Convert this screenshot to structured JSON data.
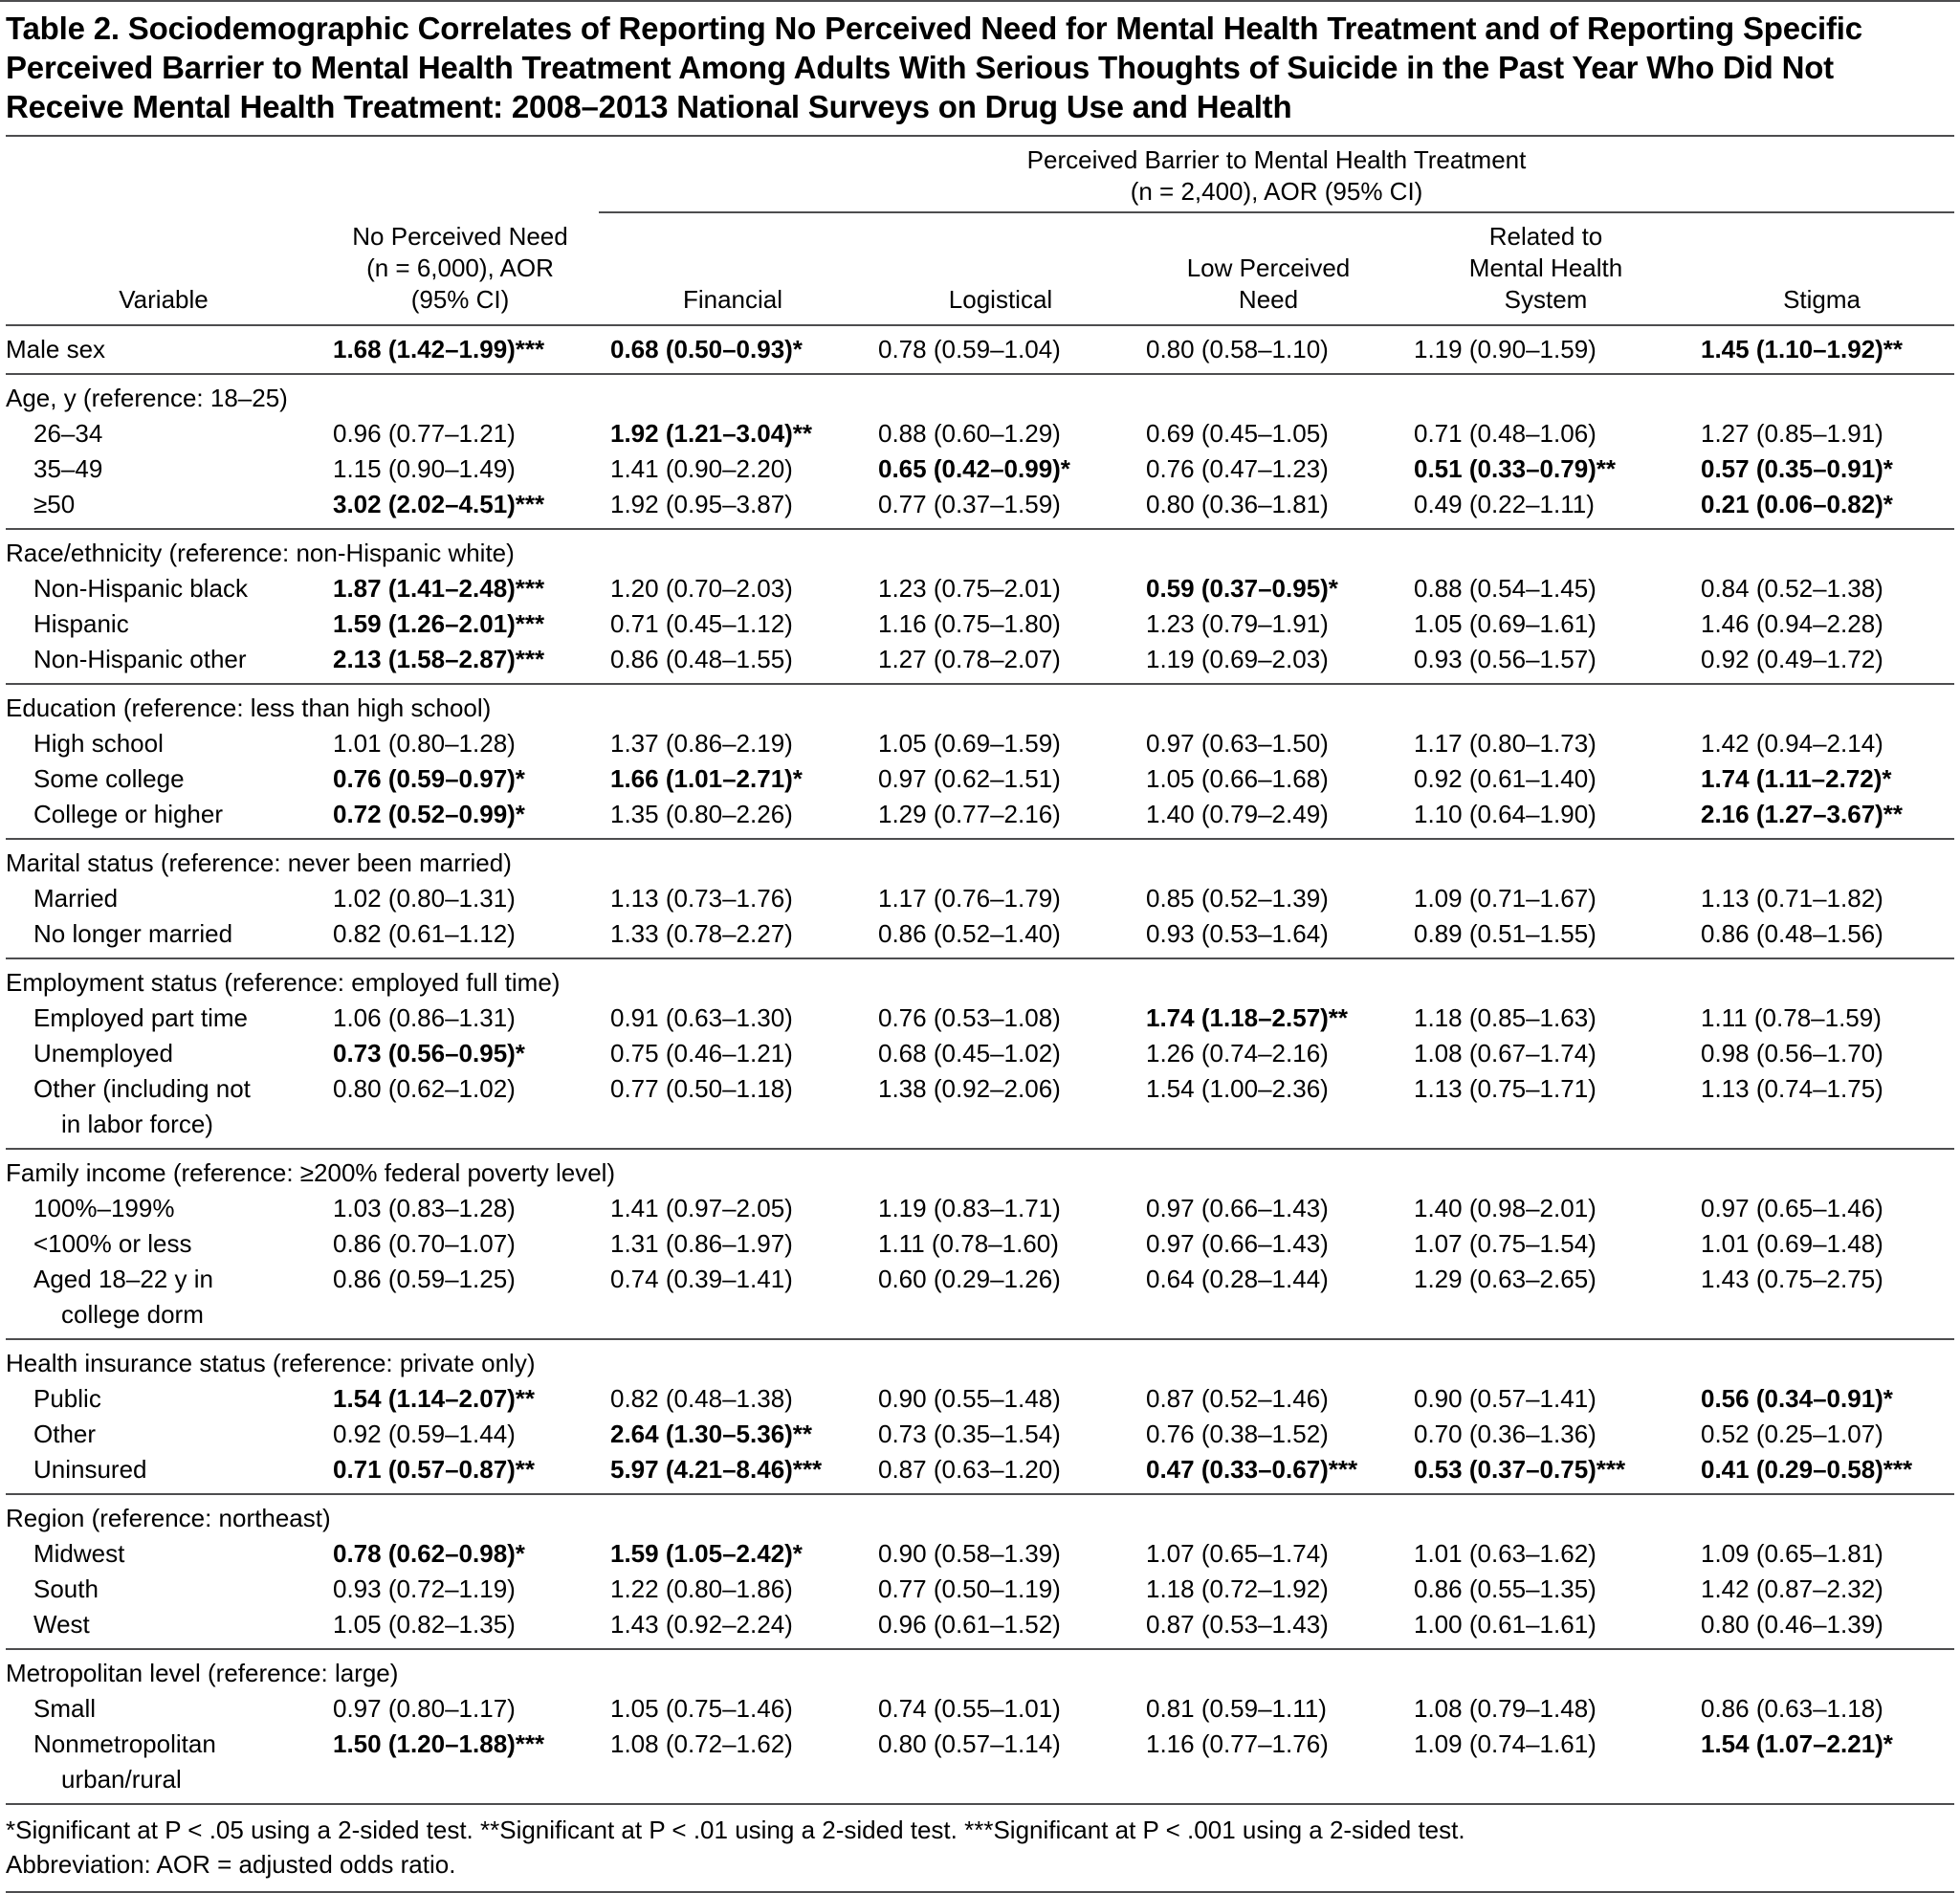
{
  "title": "Table 2. Sociodemographic Correlates of Reporting No Perceived Need for Mental Health Treatment and of Reporting Specific Perceived Barrier to Mental Health Treatment Among Adults With Serious Thoughts of Suicide in the Past Year Who Did Not Receive Mental Health Treatment: 2008–2013 National Surveys on Drug Use and Health",
  "header": {
    "barrier_group": "Perceived Barrier to Mental Health Treatment\n(n = 2,400), AOR (95% CI)",
    "columns": [
      "Variable",
      "No Perceived Need\n(n = 6,000), AOR\n(95% CI)",
      "Financial",
      "Logistical",
      "Low Perceived\nNeed",
      "Related to\nMental Health\nSystem",
      "Stigma"
    ]
  },
  "groups": [
    {
      "header": null,
      "rows": [
        {
          "label": "Male sex",
          "indent": false,
          "values": [
            {
              "t": "1.68 (1.42–1.99)***",
              "b": true
            },
            {
              "t": "0.68 (0.50–0.93)*",
              "b": true
            },
            {
              "t": "0.78 (0.59–1.04)"
            },
            {
              "t": "0.80 (0.58–1.10)"
            },
            {
              "t": "1.19 (0.90–1.59)"
            },
            {
              "t": "1.45 (1.10–1.92)**",
              "b": true
            }
          ]
        }
      ]
    },
    {
      "header": "Age, y (reference: 18–25)",
      "rows": [
        {
          "label": "26–34",
          "indent": true,
          "values": [
            {
              "t": "0.96 (0.77–1.21)"
            },
            {
              "t": "1.92 (1.21–3.04)**",
              "b": true
            },
            {
              "t": "0.88 (0.60–1.29)"
            },
            {
              "t": "0.69 (0.45–1.05)"
            },
            {
              "t": "0.71 (0.48–1.06)"
            },
            {
              "t": "1.27 (0.85–1.91)"
            }
          ]
        },
        {
          "label": "35–49",
          "indent": true,
          "values": [
            {
              "t": "1.15 (0.90–1.49)"
            },
            {
              "t": "1.41 (0.90–2.20)"
            },
            {
              "t": "0.65 (0.42–0.99)*",
              "b": true
            },
            {
              "t": "0.76 (0.47–1.23)"
            },
            {
              "t": "0.51 (0.33–0.79)**",
              "b": true
            },
            {
              "t": "0.57 (0.35–0.91)*",
              "b": true
            }
          ]
        },
        {
          "label": "≥50",
          "indent": true,
          "values": [
            {
              "t": "3.02 (2.02–4.51)***",
              "b": true
            },
            {
              "t": "1.92 (0.95–3.87)"
            },
            {
              "t": "0.77 (0.37–1.59)"
            },
            {
              "t": "0.80 (0.36–1.81)"
            },
            {
              "t": "0.49 (0.22–1.11)"
            },
            {
              "t": "0.21 (0.06–0.82)*",
              "b": true
            }
          ]
        }
      ]
    },
    {
      "header": "Race/ethnicity (reference: non-Hispanic white)",
      "rows": [
        {
          "label": "Non-Hispanic black",
          "indent": true,
          "values": [
            {
              "t": "1.87 (1.41–2.48)***",
              "b": true
            },
            {
              "t": "1.20 (0.70–2.03)"
            },
            {
              "t": "1.23 (0.75–2.01)"
            },
            {
              "t": "0.59 (0.37–0.95)*",
              "b": true
            },
            {
              "t": "0.88 (0.54–1.45)"
            },
            {
              "t": "0.84 (0.52–1.38)"
            }
          ]
        },
        {
          "label": "Hispanic",
          "indent": true,
          "values": [
            {
              "t": "1.59 (1.26–2.01)***",
              "b": true
            },
            {
              "t": "0.71 (0.45–1.12)"
            },
            {
              "t": "1.16 (0.75–1.80)"
            },
            {
              "t": "1.23 (0.79–1.91)"
            },
            {
              "t": "1.05 (0.69–1.61)"
            },
            {
              "t": "1.46 (0.94–2.28)"
            }
          ]
        },
        {
          "label": "Non-Hispanic other",
          "indent": true,
          "values": [
            {
              "t": "2.13 (1.58–2.87)***",
              "b": true
            },
            {
              "t": "0.86 (0.48–1.55)"
            },
            {
              "t": "1.27 (0.78–2.07)"
            },
            {
              "t": "1.19 (0.69–2.03)"
            },
            {
              "t": "0.93 (0.56–1.57)"
            },
            {
              "t": "0.92 (0.49–1.72)"
            }
          ]
        }
      ]
    },
    {
      "header": "Education (reference: less than high school)",
      "rows": [
        {
          "label": "High school",
          "indent": true,
          "values": [
            {
              "t": "1.01 (0.80–1.28)"
            },
            {
              "t": "1.37 (0.86–2.19)"
            },
            {
              "t": "1.05 (0.69–1.59)"
            },
            {
              "t": "0.97 (0.63–1.50)"
            },
            {
              "t": "1.17 (0.80–1.73)"
            },
            {
              "t": "1.42 (0.94–2.14)"
            }
          ]
        },
        {
          "label": "Some college",
          "indent": true,
          "values": [
            {
              "t": "0.76 (0.59–0.97)*",
              "b": true
            },
            {
              "t": "1.66 (1.01–2.71)*",
              "b": true
            },
            {
              "t": "0.97 (0.62–1.51)"
            },
            {
              "t": "1.05 (0.66–1.68)"
            },
            {
              "t": "0.92 (0.61–1.40)"
            },
            {
              "t": "1.74 (1.11–2.72)*",
              "b": true
            }
          ]
        },
        {
          "label": "College or higher",
          "indent": true,
          "values": [
            {
              "t": "0.72 (0.52–0.99)*",
              "b": true
            },
            {
              "t": "1.35 (0.80–2.26)"
            },
            {
              "t": "1.29 (0.77–2.16)"
            },
            {
              "t": "1.40 (0.79–2.49)"
            },
            {
              "t": "1.10 (0.64–1.90)"
            },
            {
              "t": "2.16 (1.27–3.67)**",
              "b": true
            }
          ]
        }
      ]
    },
    {
      "header": "Marital status (reference: never been married)",
      "rows": [
        {
          "label": "Married",
          "indent": true,
          "values": [
            {
              "t": "1.02 (0.80–1.31)"
            },
            {
              "t": "1.13 (0.73–1.76)"
            },
            {
              "t": "1.17 (0.76–1.79)"
            },
            {
              "t": "0.85 (0.52–1.39)"
            },
            {
              "t": "1.09 (0.71–1.67)"
            },
            {
              "t": "1.13 (0.71–1.82)"
            }
          ]
        },
        {
          "label": "No longer married",
          "indent": true,
          "values": [
            {
              "t": "0.82 (0.61–1.12)"
            },
            {
              "t": "1.33 (0.78–2.27)"
            },
            {
              "t": "0.86 (0.52–1.40)"
            },
            {
              "t": "0.93 (0.53–1.64)"
            },
            {
              "t": "0.89 (0.51–1.55)"
            },
            {
              "t": "0.86 (0.48–1.56)"
            }
          ]
        }
      ]
    },
    {
      "header": "Employment status (reference: employed full time)",
      "rows": [
        {
          "label": "Employed part time",
          "indent": true,
          "values": [
            {
              "t": "1.06 (0.86–1.31)"
            },
            {
              "t": "0.91 (0.63–1.30)"
            },
            {
              "t": "0.76 (0.53–1.08)"
            },
            {
              "t": "1.74 (1.18–2.57)**",
              "b": true
            },
            {
              "t": "1.18 (0.85–1.63)"
            },
            {
              "t": "1.11 (0.78–1.59)"
            }
          ]
        },
        {
          "label": "Unemployed",
          "indent": true,
          "values": [
            {
              "t": "0.73 (0.56–0.95)*",
              "b": true
            },
            {
              "t": "0.75 (0.46–1.21)"
            },
            {
              "t": "0.68 (0.45–1.02)"
            },
            {
              "t": "1.26 (0.74–2.16)"
            },
            {
              "t": "1.08 (0.67–1.74)"
            },
            {
              "t": "0.98 (0.56–1.70)"
            }
          ]
        },
        {
          "label": "Other (including not\nin labor force)",
          "indent": true,
          "values": [
            {
              "t": "0.80 (0.62–1.02)"
            },
            {
              "t": "0.77 (0.50–1.18)"
            },
            {
              "t": "1.38 (0.92–2.06)"
            },
            {
              "t": "1.54 (1.00–2.36)"
            },
            {
              "t": "1.13 (0.75–1.71)"
            },
            {
              "t": "1.13 (0.74–1.75)"
            }
          ]
        }
      ]
    },
    {
      "header": "Family income (reference: ≥200% federal poverty level)",
      "rows": [
        {
          "label": "100%–199%",
          "indent": true,
          "values": [
            {
              "t": "1.03 (0.83–1.28)"
            },
            {
              "t": "1.41 (0.97–2.05)"
            },
            {
              "t": "1.19 (0.83–1.71)"
            },
            {
              "t": "0.97 (0.66–1.43)"
            },
            {
              "t": "1.40 (0.98–2.01)"
            },
            {
              "t": "0.97 (0.65–1.46)"
            }
          ]
        },
        {
          "label": "<100% or less",
          "indent": true,
          "values": [
            {
              "t": "0.86 (0.70–1.07)"
            },
            {
              "t": "1.31 (0.86–1.97)"
            },
            {
              "t": "1.11 (0.78–1.60)"
            },
            {
              "t": "0.97 (0.66–1.43)"
            },
            {
              "t": "1.07 (0.75–1.54)"
            },
            {
              "t": "1.01 (0.69–1.48)"
            }
          ]
        },
        {
          "label": "Aged 18–22 y in\ncollege dorm",
          "indent": true,
          "values": [
            {
              "t": "0.86 (0.59–1.25)"
            },
            {
              "t": "0.74 (0.39–1.41)"
            },
            {
              "t": "0.60 (0.29–1.26)"
            },
            {
              "t": "0.64 (0.28–1.44)"
            },
            {
              "t": "1.29 (0.63–2.65)"
            },
            {
              "t": "1.43 (0.75–2.75)"
            }
          ]
        }
      ]
    },
    {
      "header": "Health insurance status (reference: private only)",
      "rows": [
        {
          "label": "Public",
          "indent": true,
          "values": [
            {
              "t": "1.54 (1.14–2.07)**",
              "b": true
            },
            {
              "t": "0.82 (0.48–1.38)"
            },
            {
              "t": "0.90 (0.55–1.48)"
            },
            {
              "t": "0.87 (0.52–1.46)"
            },
            {
              "t": "0.90 (0.57–1.41)"
            },
            {
              "t": "0.56 (0.34–0.91)*",
              "b": true
            }
          ]
        },
        {
          "label": "Other",
          "indent": true,
          "values": [
            {
              "t": "0.92 (0.59–1.44)"
            },
            {
              "t": "2.64 (1.30–5.36)**",
              "b": true
            },
            {
              "t": "0.73 (0.35–1.54)"
            },
            {
              "t": "0.76 (0.38–1.52)"
            },
            {
              "t": "0.70 (0.36–1.36)"
            },
            {
              "t": "0.52 (0.25–1.07)"
            }
          ]
        },
        {
          "label": "Uninsured",
          "indent": true,
          "values": [
            {
              "t": "0.71 (0.57–0.87)**",
              "b": true
            },
            {
              "t": "5.97 (4.21–8.46)***",
              "b": true
            },
            {
              "t": "0.87 (0.63–1.20)"
            },
            {
              "t": "0.47 (0.33–0.67)***",
              "b": true
            },
            {
              "t": "0.53 (0.37–0.75)***",
              "b": true
            },
            {
              "t": "0.41 (0.29–0.58)***",
              "b": true
            }
          ]
        }
      ]
    },
    {
      "header": "Region (reference: northeast)",
      "rows": [
        {
          "label": "Midwest",
          "indent": true,
          "values": [
            {
              "t": "0.78 (0.62–0.98)*",
              "b": true
            },
            {
              "t": "1.59 (1.05–2.42)*",
              "b": true
            },
            {
              "t": "0.90 (0.58–1.39)"
            },
            {
              "t": "1.07 (0.65–1.74)"
            },
            {
              "t": "1.01 (0.63–1.62)"
            },
            {
              "t": "1.09 (0.65–1.81)"
            }
          ]
        },
        {
          "label": "South",
          "indent": true,
          "values": [
            {
              "t": "0.93 (0.72–1.19)"
            },
            {
              "t": "1.22 (0.80–1.86)"
            },
            {
              "t": "0.77 (0.50–1.19)"
            },
            {
              "t": "1.18 (0.72–1.92)"
            },
            {
              "t": "0.86 (0.55–1.35)"
            },
            {
              "t": "1.42 (0.87–2.32)"
            }
          ]
        },
        {
          "label": "West",
          "indent": true,
          "values": [
            {
              "t": "1.05 (0.82–1.35)"
            },
            {
              "t": "1.43 (0.92–2.24)"
            },
            {
              "t": "0.96 (0.61–1.52)"
            },
            {
              "t": "0.87 (0.53–1.43)"
            },
            {
              "t": "1.00 (0.61–1.61)"
            },
            {
              "t": "0.80 (0.46–1.39)"
            }
          ]
        }
      ]
    },
    {
      "header": "Metropolitan level (reference: large)",
      "rows": [
        {
          "label": "Small",
          "indent": true,
          "values": [
            {
              "t": "0.97 (0.80–1.17)"
            },
            {
              "t": "1.05 (0.75–1.46)"
            },
            {
              "t": "0.74 (0.55–1.01)"
            },
            {
              "t": "0.81 (0.59–1.11)"
            },
            {
              "t": "1.08 (0.79–1.48)"
            },
            {
              "t": "0.86 (0.63–1.18)"
            }
          ]
        },
        {
          "label": "Nonmetropolitan\nurban/rural",
          "indent": true,
          "values": [
            {
              "t": "1.50 (1.20–1.88)***",
              "b": true
            },
            {
              "t": "1.08 (0.72–1.62)"
            },
            {
              "t": "0.80 (0.57–1.14)"
            },
            {
              "t": "1.16 (0.77–1.76)"
            },
            {
              "t": "1.09 (0.74–1.61)"
            },
            {
              "t": "1.54 (1.07–2.21)*",
              "b": true
            }
          ]
        }
      ]
    }
  ],
  "footnotes": [
    "*Significant at P < .05 using a 2-sided test.  **Significant at P < .01 using a 2-sided test.  ***Significant at P < .001 using a 2-sided test.",
    "Abbreviation: AOR = adjusted odds ratio."
  ]
}
